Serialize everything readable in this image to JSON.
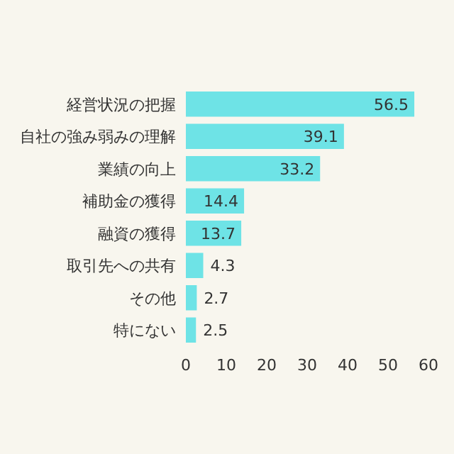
{
  "chart_data": {
    "type": "bar",
    "orientation": "horizontal",
    "categories": [
      "経営状況の把握",
      "自社の強み弱みの理解",
      "業績の向上",
      "補助金の獲得",
      "融資の獲得",
      "取引先への共有",
      "その他",
      "特にない"
    ],
    "values": [
      56.5,
      39.1,
      33.2,
      14.4,
      13.7,
      4.3,
      2.7,
      2.5
    ],
    "color": "#6ee3e6",
    "xlim": [
      0,
      60
    ],
    "xticks": [
      0,
      10,
      20,
      30,
      40,
      50,
      60
    ],
    "data_labels": true,
    "grid": false
  }
}
